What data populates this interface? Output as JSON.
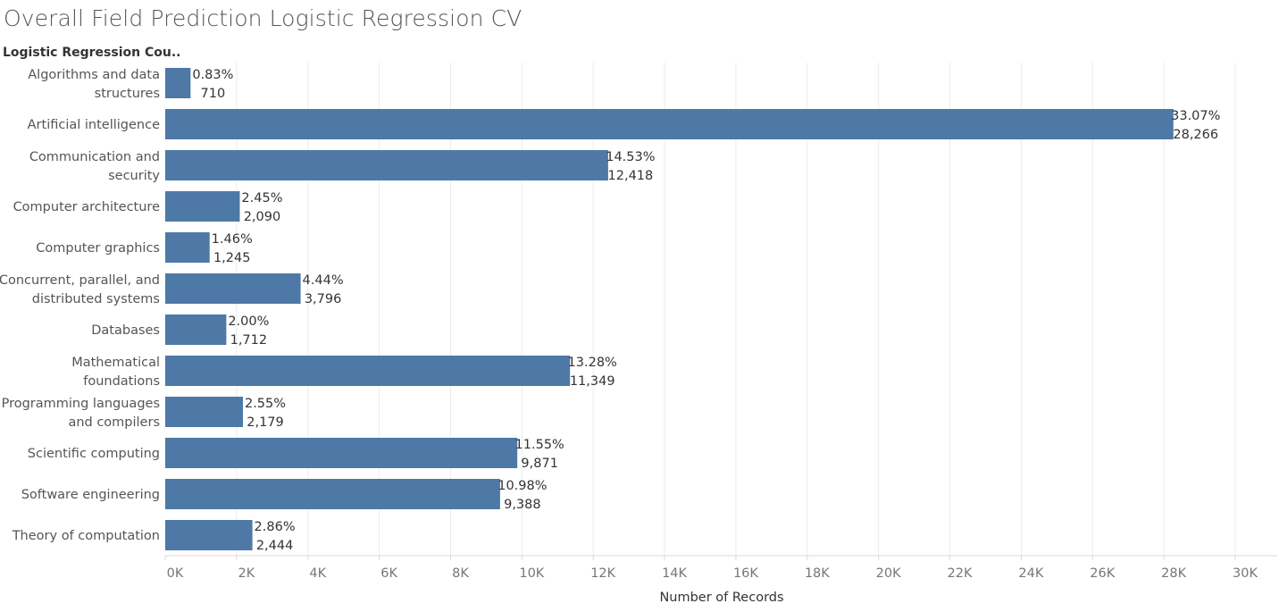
{
  "chart_data": {
    "type": "bar",
    "orientation": "horizontal",
    "title": "Overall Field Prediction Logistic Regression CV",
    "row_header": "Logistic Regression Cou..",
    "xlabel": "Number of Records",
    "xlim": [
      0,
      30000
    ],
    "ticks": [
      "0K",
      "2K",
      "4K",
      "6K",
      "8K",
      "10K",
      "12K",
      "14K",
      "16K",
      "18K",
      "20K",
      "22K",
      "24K",
      "26K",
      "28K",
      "30K"
    ],
    "tick_values": [
      0,
      2000,
      4000,
      6000,
      8000,
      10000,
      12000,
      14000,
      16000,
      18000,
      20000,
      22000,
      24000,
      26000,
      28000,
      30000
    ],
    "grid": true,
    "bar_color": "#4e79a7",
    "categories": [
      [
        "Algorithms and data",
        "structures"
      ],
      [
        "Artificial intelligence"
      ],
      [
        "Communication and",
        "security"
      ],
      [
        "Computer architecture"
      ],
      [
        "Computer graphics"
      ],
      [
        "Concurrent, parallel, and",
        "distributed systems"
      ],
      [
        "Databases"
      ],
      [
        "Mathematical",
        "foundations"
      ],
      [
        "Programming languages",
        "and compilers"
      ],
      [
        "Scientific computing"
      ],
      [
        "Software engineering"
      ],
      [
        "Theory of computation"
      ]
    ],
    "values": [
      710,
      28266,
      12418,
      2090,
      1245,
      3796,
      1712,
      11349,
      2179,
      9871,
      9388,
      2444
    ],
    "value_labels": [
      "710",
      "28,266",
      "12,418",
      "2,090",
      "1,245",
      "3,796",
      "1,712",
      "11,349",
      "2,179",
      "9,871",
      "9,388",
      "2,444"
    ],
    "percent_labels": [
      "0.83%",
      "33.07%",
      "14.53%",
      "2.45%",
      "1.46%",
      "4.44%",
      "2.00%",
      "13.28%",
      "2.55%",
      "11.55%",
      "10.98%",
      "2.86%"
    ]
  }
}
